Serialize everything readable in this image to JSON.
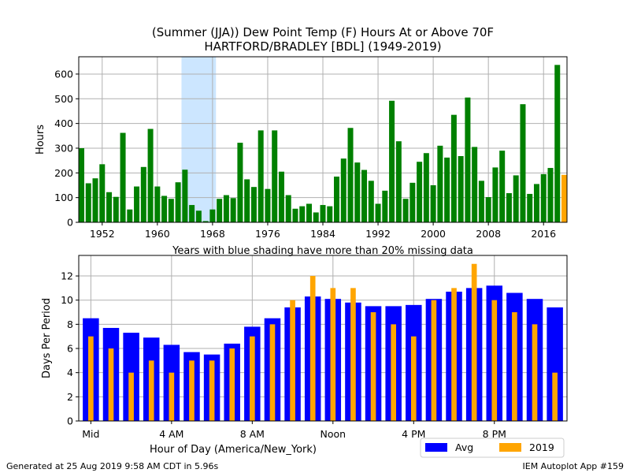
{
  "title_line1": "(Summer (JJA)) Dew Point Temp (F) Hours At or Above 70F",
  "title_line2": "HARTFORD/BRADLEY [BDL] (1949-2019)",
  "footer_left": "Generated at 25 Aug 2019 9:58 AM CDT in 5.96s",
  "footer_right": "IEM Autoplot App #159",
  "colors": {
    "year_bars": "#008000",
    "current_year_bar": "#ffa500",
    "missing_shade": "#cce6ff",
    "avg_bars": "#0000ff",
    "current_bars": "#ffa500",
    "grid": "#b0b0b0"
  },
  "chart_data": [
    {
      "type": "bar",
      "ylabel": "Hours",
      "xlabel": "Years with blue shading have more than 20% missing data",
      "ylim": [
        0,
        670
      ],
      "yticks": [
        0,
        100,
        200,
        300,
        400,
        500,
        600
      ],
      "xticks": [
        "1952",
        "1960",
        "1968",
        "1976",
        "1984",
        "1992",
        "2000",
        "2008",
        "2016"
      ],
      "xtick_values": [
        1952,
        1960,
        1968,
        1976,
        1984,
        1992,
        2000,
        2008,
        2016
      ],
      "xlim": [
        1948.6,
        2019.4
      ],
      "missing_shading": [
        1964,
        1968
      ],
      "grid": true,
      "years": [
        1949,
        1950,
        1951,
        1952,
        1953,
        1954,
        1955,
        1956,
        1957,
        1958,
        1959,
        1960,
        1961,
        1962,
        1963,
        1964,
        1965,
        1966,
        1967,
        1968,
        1969,
        1970,
        1971,
        1972,
        1973,
        1974,
        1975,
        1976,
        1977,
        1978,
        1979,
        1980,
        1981,
        1982,
        1983,
        1984,
        1985,
        1986,
        1987,
        1988,
        1989,
        1990,
        1991,
        1992,
        1993,
        1994,
        1995,
        1996,
        1997,
        1998,
        1999,
        2000,
        2001,
        2002,
        2003,
        2004,
        2005,
        2006,
        2007,
        2008,
        2009,
        2010,
        2011,
        2012,
        2013,
        2014,
        2015,
        2016,
        2017,
        2018,
        2019
      ],
      "values": [
        300,
        158,
        178,
        235,
        122,
        103,
        362,
        52,
        145,
        224,
        378,
        145,
        107,
        95,
        162,
        213,
        70,
        47,
        5,
        52,
        95,
        110,
        98,
        322,
        174,
        143,
        372,
        135,
        372,
        205,
        110,
        55,
        65,
        75,
        40,
        70,
        65,
        185,
        258,
        382,
        242,
        212,
        168,
        75,
        128,
        492,
        328,
        95,
        160,
        245,
        280,
        150,
        310,
        262,
        435,
        268,
        505,
        305,
        168,
        102,
        222,
        290,
        118,
        190,
        478,
        115,
        155,
        195,
        220,
        637,
        192
      ],
      "highlight_year": 2019
    },
    {
      "type": "bar",
      "ylabel": "Days Per Period",
      "xlabel": "Hour of Day (America/New_York)",
      "ylim": [
        0,
        13.7
      ],
      "yticks": [
        0,
        2,
        4,
        6,
        8,
        10,
        12
      ],
      "xtick_labels": [
        "Mid",
        "4 AM",
        "8 AM",
        "Noon",
        "4 PM",
        "8 PM"
      ],
      "xtick_hours": [
        0,
        4,
        8,
        12,
        16,
        20
      ],
      "xlim": [
        -0.6,
        23.6
      ],
      "grid": true,
      "hours": [
        0,
        1,
        2,
        3,
        4,
        5,
        6,
        7,
        8,
        9,
        10,
        11,
        12,
        13,
        14,
        15,
        16,
        17,
        18,
        19,
        20,
        21,
        22,
        23
      ],
      "series": [
        {
          "name": "Avg",
          "values": [
            8.5,
            7.7,
            7.3,
            6.9,
            6.3,
            5.7,
            5.5,
            6.4,
            7.8,
            8.5,
            9.4,
            10.3,
            10.1,
            9.8,
            9.5,
            9.5,
            9.6,
            10.1,
            10.7,
            11.0,
            11.2,
            10.6,
            10.1,
            9.4
          ]
        },
        {
          "name": "2019",
          "values": [
            7,
            6,
            4,
            5,
            4,
            5,
            5,
            6,
            7,
            8,
            10,
            12,
            11,
            11,
            9,
            8,
            7,
            10,
            11,
            13,
            10,
            9,
            8,
            4
          ]
        }
      ],
      "legend_position": "bottom-right"
    }
  ]
}
